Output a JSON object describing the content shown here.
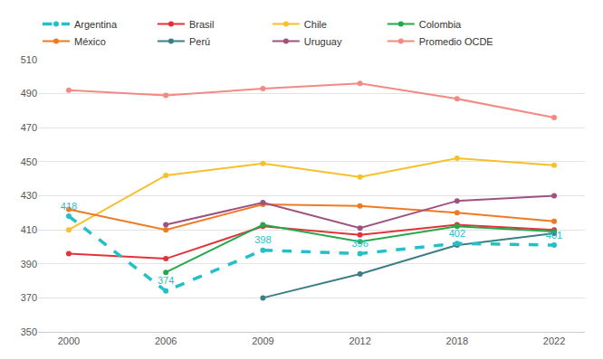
{
  "chart_data": {
    "type": "line",
    "categories": [
      "2000",
      "2006",
      "2009",
      "2012",
      "2018",
      "2022"
    ],
    "series": [
      {
        "name": "Argentina",
        "color": "#22c1c9",
        "line_style": "dashed",
        "marker": "circle",
        "data_labels": true,
        "values": [
          418,
          374,
          398,
          396,
          402,
          401
        ]
      },
      {
        "name": "Brasil",
        "color": "#e2333a",
        "line_style": "solid",
        "marker": "circle",
        "values": [
          396,
          393,
          412,
          407,
          413,
          410
        ]
      },
      {
        "name": "Chile",
        "color": "#f6c02a",
        "line_style": "solid",
        "marker": "circle",
        "values": [
          410,
          442,
          449,
          441,
          452,
          448
        ]
      },
      {
        "name": "Colombia",
        "color": "#26a84a",
        "line_style": "solid",
        "marker": "circle",
        "values": [
          null,
          385,
          413,
          403,
          412,
          409
        ]
      },
      {
        "name": "México",
        "color": "#f07a22",
        "line_style": "solid",
        "marker": "circle",
        "values": [
          422,
          410,
          425,
          424,
          420,
          415
        ]
      },
      {
        "name": "Perú",
        "color": "#3b7f86",
        "line_style": "solid",
        "marker": "circle",
        "values": [
          null,
          null,
          370,
          384,
          401,
          408
        ]
      },
      {
        "name": "Uruguay",
        "color": "#a0527f",
        "line_style": "solid",
        "marker": "circle",
        "values": [
          null,
          413,
          426,
          411,
          427,
          430
        ]
      },
      {
        "name": "Promedio OCDE",
        "color": "#f28a82",
        "line_style": "solid",
        "marker": "circle",
        "values": [
          492,
          489,
          493,
          496,
          487,
          476
        ]
      }
    ],
    "ylim": [
      350,
      510
    ],
    "yticks": [
      350,
      370,
      390,
      410,
      430,
      450,
      470,
      490,
      510
    ],
    "grid": true,
    "legend": "top"
  }
}
